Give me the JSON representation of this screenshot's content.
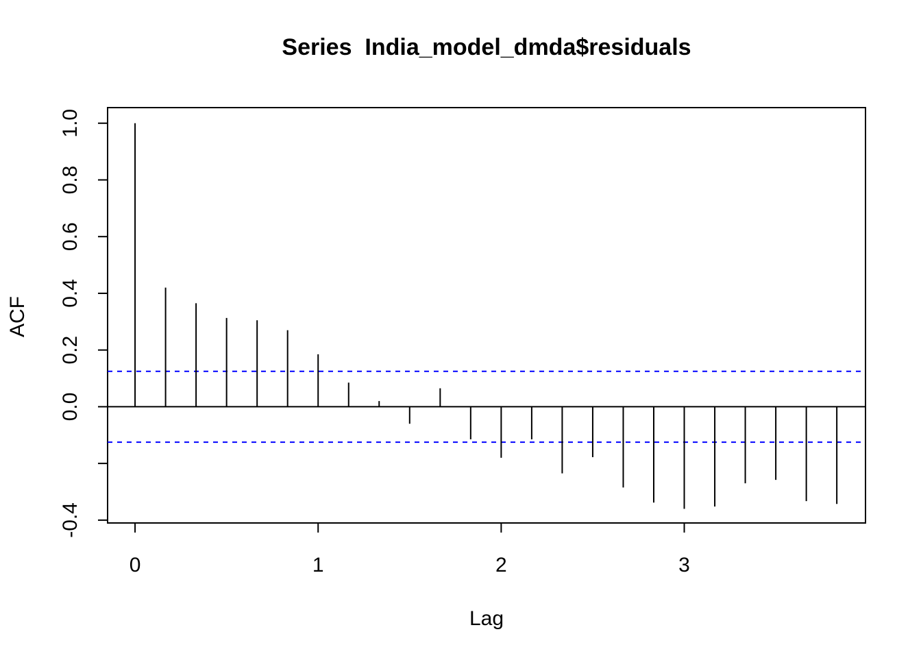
{
  "chart_data": {
    "type": "bar",
    "subtype": "acf",
    "title": "Series  India_model_dmda$residuals",
    "xlabel": "Lag",
    "ylabel": "ACF",
    "xlim": [
      -0.15,
      3.99
    ],
    "ylim": [
      -0.41,
      1.055
    ],
    "x_ticks": [
      "0",
      "1",
      "2",
      "3"
    ],
    "y_ticks": [
      "-0.4",
      "0.0",
      "0.2",
      "0.4",
      "0.6",
      "0.8",
      "1.0"
    ],
    "y_ticks_minor": [
      -0.2
    ],
    "confidence_band": 0.125,
    "colors": {
      "bars": "#000000",
      "band": "#0000ff",
      "zero_line": "#000000"
    },
    "lags": [
      0,
      0.1667,
      0.3333,
      0.5,
      0.6667,
      0.8333,
      1.0,
      1.1667,
      1.3333,
      1.5,
      1.6667,
      1.8333,
      2.0,
      2.1667,
      2.3333,
      2.5,
      2.6667,
      2.8333,
      3.0,
      3.1667,
      3.3333,
      3.5,
      3.6667,
      3.8333
    ],
    "values": [
      1.0,
      0.42,
      0.365,
      0.313,
      0.305,
      0.27,
      0.185,
      0.085,
      0.02,
      -0.06,
      0.065,
      -0.115,
      -0.18,
      -0.115,
      -0.235,
      -0.178,
      -0.285,
      -0.338,
      -0.36,
      -0.352,
      -0.27,
      -0.258,
      -0.333,
      -0.343
    ]
  }
}
